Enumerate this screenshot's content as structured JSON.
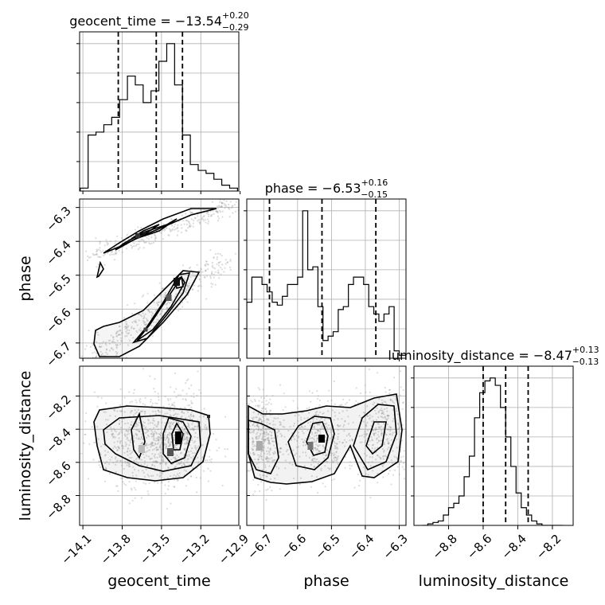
{
  "chart_data": {
    "type": "corner",
    "params": [
      {
        "key": "geocent_time",
        "label": "geocent_time",
        "ticks": [
          "−14.1",
          "−13.8",
          "−13.5",
          "−13.2",
          "−12.9"
        ]
      },
      {
        "key": "phase",
        "label": "phase",
        "ticks": [
          "−6.7",
          "−6.6",
          "−6.5",
          "−6.4",
          "−6.3"
        ]
      },
      {
        "key": "luminosity_distance",
        "label": "luminosity_distance",
        "ticks": [
          "−8.8",
          "−8.6",
          "−8.4",
          "−8.2"
        ]
      }
    ],
    "titles": [
      {
        "param": "geocent_time",
        "prefix": "geocent_time = −13.54",
        "plus": "+0.20",
        "minus": "−0.29"
      },
      {
        "param": "phase",
        "prefix": "phase = −6.53",
        "plus": "+0.16",
        "minus": "−0.15"
      },
      {
        "param": "luminosity_distance",
        "prefix": "luminosity_distance = −8.47",
        "plus": "+0.13",
        "minus": "−0.13"
      }
    ],
    "histograms": [
      {
        "param": "geocent_time",
        "bin_edges": [
          -14.12,
          -14.09,
          -14.06,
          -14.03,
          -14.0,
          -13.97,
          -13.94,
          -13.91,
          -13.88,
          -13.85,
          -13.82,
          -13.79,
          -13.76,
          -13.73,
          -13.7,
          -13.67,
          -13.64,
          -13.61,
          -13.58,
          -13.55,
          -13.52,
          -13.49,
          -13.46,
          -13.43,
          -13.4,
          -13.37,
          -13.34,
          -13.31,
          -13.28,
          -13.25,
          -13.22,
          -13.19,
          -13.16,
          -13.13,
          -13.1,
          -13.07,
          -13.04,
          -13.01,
          -12.98,
          -12.95,
          -12.92
        ],
        "counts": [
          0.02,
          0.02,
          0.38,
          0.38,
          0.4,
          0.4,
          0.45,
          0.45,
          0.5,
          0.5,
          0.62,
          0.62,
          0.78,
          0.78,
          0.72,
          0.72,
          0.6,
          0.6,
          0.68,
          0.68,
          0.88,
          0.88,
          1.0,
          1.0,
          0.72,
          0.72,
          0.38,
          0.38,
          0.18,
          0.18,
          0.14,
          0.14,
          0.12,
          0.12,
          0.08,
          0.08,
          0.04,
          0.04,
          0.02,
          0.02
        ],
        "quantiles": [
          -13.83,
          -13.54,
          -13.34
        ]
      },
      {
        "param": "phase",
        "bin_edges": [
          -6.75,
          -6.735,
          -6.72,
          -6.705,
          -6.69,
          -6.675,
          -6.66,
          -6.645,
          -6.63,
          -6.615,
          -6.6,
          -6.585,
          -6.57,
          -6.555,
          -6.54,
          -6.525,
          -6.51,
          -6.495,
          -6.48,
          -6.465,
          -6.45,
          -6.435,
          -6.42,
          -6.405,
          -6.39,
          -6.375,
          -6.36,
          -6.345,
          -6.33,
          -6.315,
          -6.3,
          -6.285,
          -6.27
        ],
        "counts": [
          0.38,
          0.55,
          0.55,
          0.5,
          0.45,
          0.38,
          0.36,
          0.42,
          0.5,
          0.5,
          0.55,
          1.0,
          0.6,
          0.62,
          0.35,
          0.12,
          0.15,
          0.18,
          0.33,
          0.35,
          0.5,
          0.55,
          0.55,
          0.5,
          0.35,
          0.3,
          0.25,
          0.3,
          0.35,
          0.05,
          0.02,
          0.02
        ],
        "quantiles": [
          -6.683,
          -6.528,
          -6.369
        ]
      },
      {
        "param": "luminosity_distance",
        "bin_edges": [
          -8.95,
          -8.92,
          -8.89,
          -8.86,
          -8.83,
          -8.8,
          -8.77,
          -8.74,
          -8.71,
          -8.68,
          -8.65,
          -8.62,
          -8.59,
          -8.56,
          -8.53,
          -8.5,
          -8.47,
          -8.44,
          -8.41,
          -8.38,
          -8.35,
          -8.32,
          -8.29,
          -8.26,
          -8.23,
          -8.2,
          -8.17,
          -8.14
        ],
        "counts": [
          0.0,
          0.01,
          0.02,
          0.03,
          0.07,
          0.12,
          0.15,
          0.2,
          0.33,
          0.47,
          0.73,
          0.9,
          0.98,
          1.0,
          0.95,
          0.8,
          0.6,
          0.4,
          0.22,
          0.12,
          0.07,
          0.03,
          0.01,
          0.0,
          0.0,
          0.0,
          0.0
        ],
        "quantiles": [
          -8.6,
          -8.47,
          -8.34
        ]
      }
    ],
    "grid": true
  }
}
